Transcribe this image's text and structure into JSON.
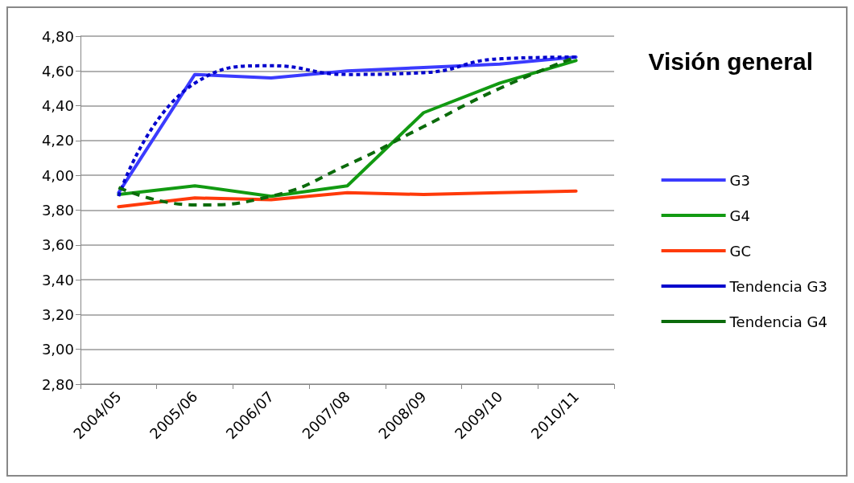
{
  "chart_data": {
    "type": "line",
    "title": "Visión general",
    "categories": [
      "2004/05",
      "2005/06",
      "2006/07",
      "2007/08",
      "2008/09",
      "2009/10",
      "2010/11"
    ],
    "series": [
      {
        "name": "G3",
        "color": "#3b3bff",
        "values": [
          3.9,
          4.58,
          4.56,
          4.6,
          4.62,
          4.64,
          4.68
        ]
      },
      {
        "name": "G4",
        "color": "#129a12",
        "values": [
          3.89,
          3.94,
          3.88,
          3.94,
          4.36,
          4.53,
          4.66
        ]
      },
      {
        "name": "GC",
        "color": "#ff3a0a",
        "values": [
          3.82,
          3.87,
          3.86,
          3.9,
          3.89,
          3.9,
          3.91
        ]
      },
      {
        "name": "Tendencia G3",
        "color": "#0000cc",
        "line_style": "dotted",
        "values": [
          3.88,
          4.53,
          4.63,
          4.58,
          4.59,
          4.67,
          4.68
        ]
      },
      {
        "name": "Tendencia G4",
        "color": "#0b6b0b",
        "line_style": "dashed",
        "values": [
          3.93,
          3.83,
          3.88,
          4.06,
          4.28,
          4.5,
          4.68
        ]
      }
    ],
    "ylim": [
      2.8,
      4.8
    ],
    "yticks": [
      {
        "value": 2.8,
        "label": "2,80"
      },
      {
        "value": 3.0,
        "label": "3,00"
      },
      {
        "value": 3.2,
        "label": "3,20"
      },
      {
        "value": 3.4,
        "label": "3,40"
      },
      {
        "value": 3.6,
        "label": "3,60"
      },
      {
        "value": 3.8,
        "label": "3,80"
      },
      {
        "value": 4.0,
        "label": "4,00"
      },
      {
        "value": 4.2,
        "label": "4,20"
      },
      {
        "value": 4.4,
        "label": "4,40"
      },
      {
        "value": 4.6,
        "label": "4,60"
      },
      {
        "value": 4.8,
        "label": "4,80"
      }
    ],
    "grid": "y",
    "legend": "right",
    "marker": "none",
    "line_style": "solid"
  }
}
